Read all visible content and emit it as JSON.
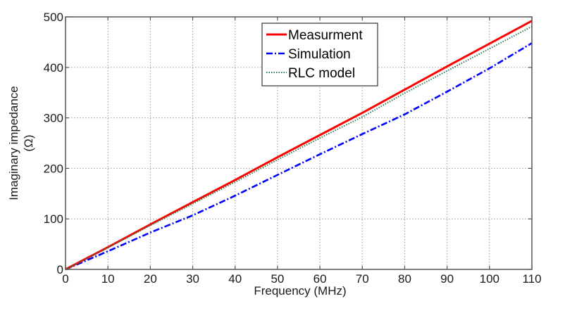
{
  "chart_data": {
    "type": "line",
    "title": "",
    "xlabel": "Frequency (MHz)",
    "ylabel_lines": [
      "Imaginary impedance",
      "(Ω)"
    ],
    "xlim": [
      0,
      110
    ],
    "ylim": [
      0,
      500
    ],
    "xticks": [
      0,
      10,
      20,
      30,
      40,
      50,
      60,
      70,
      80,
      90,
      100,
      110
    ],
    "yticks": [
      0,
      100,
      200,
      300,
      400,
      500
    ],
    "xtick_labels": [
      "0",
      "10",
      "20",
      "30",
      "40",
      "50",
      "60",
      "70",
      "80",
      "90",
      "100",
      "110"
    ],
    "ytick_labels": [
      "0",
      "100",
      "200",
      "300",
      "400",
      "500"
    ],
    "grid": true,
    "legend_position": "top-center",
    "x": [
      0,
      10,
      20,
      30,
      40,
      50,
      60,
      70,
      80,
      90,
      100,
      110
    ],
    "series": [
      {
        "name": "Measurment",
        "color": "#ff0000",
        "style": "solid",
        "values": [
          0,
          44,
          89,
          133,
          177,
          222,
          266,
          310,
          356,
          402,
          447,
          492
        ]
      },
      {
        "name": "Simulation",
        "color": "#0000ff",
        "style": "dashdot",
        "values": [
          0,
          36,
          73,
          107,
          146,
          187,
          228,
          268,
          307,
          352,
          398,
          448
        ]
      },
      {
        "name": "RLC model",
        "color": "#2e7d4f",
        "style": "dotted",
        "values": [
          0,
          43,
          87,
          130,
          173,
          217,
          260,
          302,
          349,
          393,
          437,
          481
        ]
      }
    ]
  }
}
